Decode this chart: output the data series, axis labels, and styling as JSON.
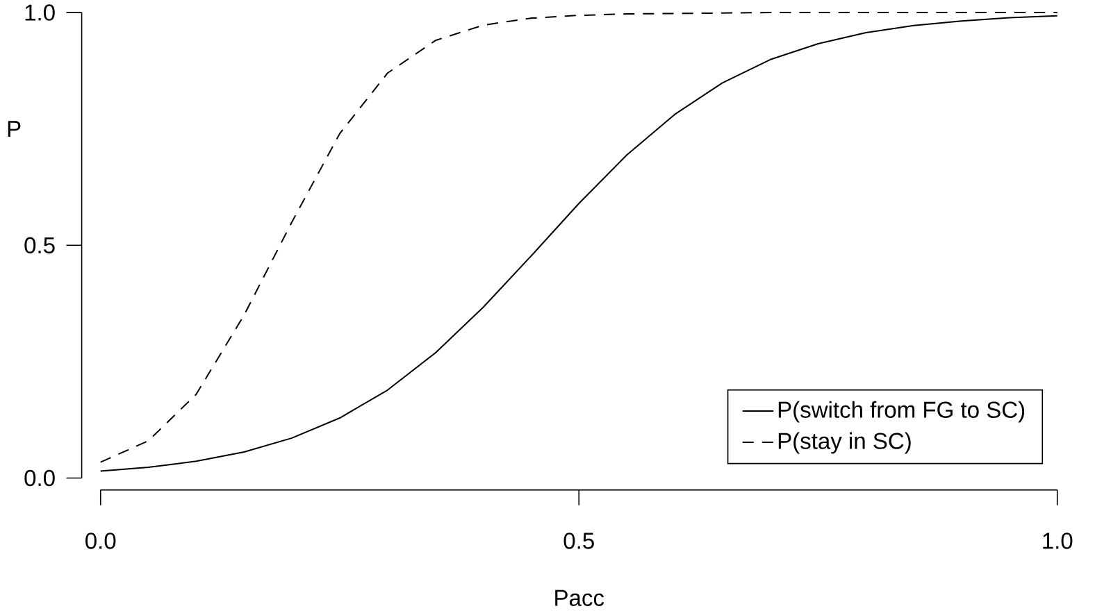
{
  "chart_data": {
    "type": "line",
    "xlabel": "Pacc",
    "ylabel": "P",
    "x": [
      0,
      0.05,
      0.1,
      0.15,
      0.2,
      0.25,
      0.3,
      0.35,
      0.4,
      0.45,
      0.5,
      0.55,
      0.6,
      0.65,
      0.7,
      0.75,
      0.8,
      0.85,
      0.9,
      0.95,
      1
    ],
    "xlim": [
      0,
      1
    ],
    "ylim": [
      0,
      1
    ],
    "xticks": [
      {
        "value": 0,
        "label": "0.0"
      },
      {
        "value": 0.5,
        "label": "0.5"
      },
      {
        "value": 1,
        "label": "1.0"
      }
    ],
    "yticks": [
      {
        "value": 0,
        "label": "0.0"
      },
      {
        "value": 0.5,
        "label": "0.5"
      },
      {
        "value": 1,
        "label": "1.0"
      }
    ],
    "legend": "bottom right",
    "series": [
      {
        "name": "P(switch from FG to SC)",
        "color": "#000000",
        "line_style": "solid",
        "values": [
          0.015,
          0.023,
          0.036,
          0.056,
          0.086,
          0.129,
          0.189,
          0.269,
          0.367,
          0.477,
          0.59,
          0.694,
          0.781,
          0.849,
          0.899,
          0.933,
          0.957,
          0.972,
          0.982,
          0.989,
          0.993
        ]
      },
      {
        "name": "P(stay in SC)",
        "color": "#000000",
        "line_style": "dashed",
        "values": [
          0.034,
          0.08,
          0.18,
          0.35,
          0.55,
          0.74,
          0.87,
          0.94,
          0.973,
          0.988,
          0.994,
          0.997,
          0.998,
          0.999,
          1,
          1,
          1,
          1,
          1,
          1,
          1
        ]
      }
    ]
  }
}
